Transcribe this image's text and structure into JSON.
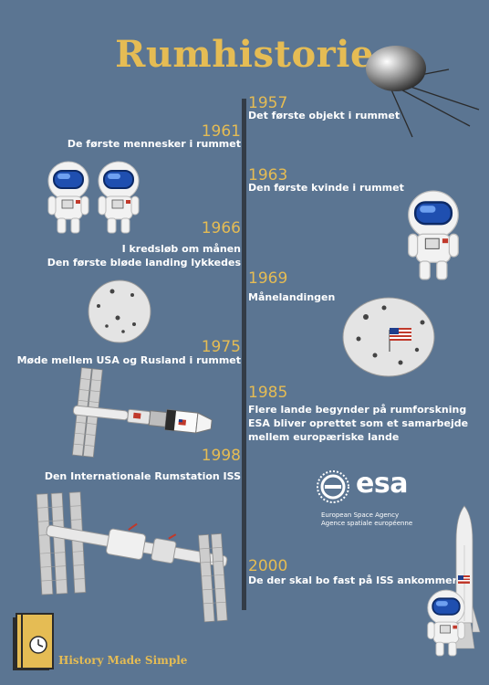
{
  "title": "Rumhistorie",
  "events": [
    {
      "year": "1957",
      "text": "Det første objekt i rummet"
    },
    {
      "year": "1961",
      "text": "De første mennesker i rummet"
    },
    {
      "year": "1963",
      "text": "Den første kvinde i rummet"
    },
    {
      "year": "1966",
      "lines": [
        "I kredsløb om månen",
        "Den første bløde landing lykkedes"
      ]
    },
    {
      "year": "1969",
      "text": "Månelandingen"
    },
    {
      "year": "1975",
      "text": "Møde mellem USA og Rusland i rummet"
    },
    {
      "year": "1985",
      "lines": [
        "Flere lande begynder på rumforskning",
        "ESA bliver oprettet som et samarbejde",
        "mellem europæriske lande"
      ]
    },
    {
      "year": "1998",
      "text": "Den Internationale Rumstation ISS"
    },
    {
      "year": "2000",
      "text": "De der skal bo fast på ISS ankommer"
    }
  ],
  "esa": {
    "wordmark": "esa",
    "line1": "European Space Agency",
    "line2": "Agence spatiale européenne"
  },
  "brand": "History Made Simple",
  "colors": {
    "background": "#5b7592",
    "accent": "#e5bc54",
    "timeline": "#333c47",
    "text": "#ffffff"
  }
}
